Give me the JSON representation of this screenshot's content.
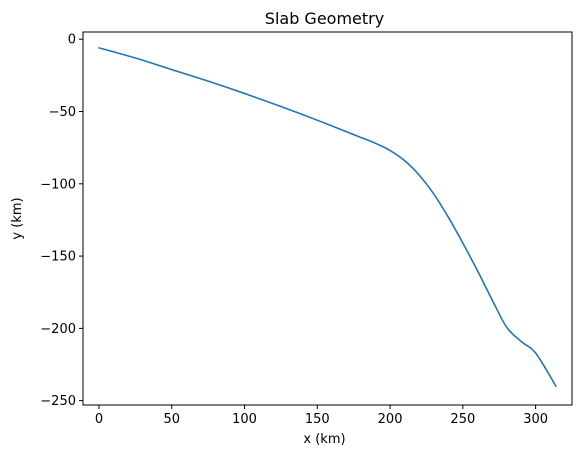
{
  "chart_data": {
    "type": "line",
    "title": "Slab Geometry",
    "xlabel": "x (km)",
    "ylabel": "y (km)",
    "xlim": [
      -11,
      325
    ],
    "ylim": [
      -253,
      5
    ],
    "x_ticks": [
      0,
      50,
      100,
      150,
      200,
      250,
      300
    ],
    "y_ticks": [
      0,
      -50,
      -100,
      -150,
      -200,
      -250
    ],
    "x_tick_labels": [
      "0",
      "50",
      "100",
      "150",
      "200",
      "250",
      "300"
    ],
    "y_tick_labels": [
      "0",
      "−50",
      "−100",
      "−150",
      "−200",
      "−250"
    ],
    "grid": false,
    "series": [
      {
        "color": "#1f77b4",
        "x": [
          0,
          25,
          50,
          75,
          100,
          125,
          150,
          175,
          190,
          200,
          210,
          220,
          230,
          240,
          250,
          260,
          270,
          280,
          290,
          300,
          314
        ],
        "y": [
          -6,
          -13,
          -21,
          -29,
          -37.5,
          -46.5,
          -56,
          -66,
          -72,
          -77,
          -84,
          -94,
          -107,
          -123,
          -141,
          -160,
          -180,
          -199,
          -209,
          -217,
          -240
        ]
      }
    ]
  }
}
